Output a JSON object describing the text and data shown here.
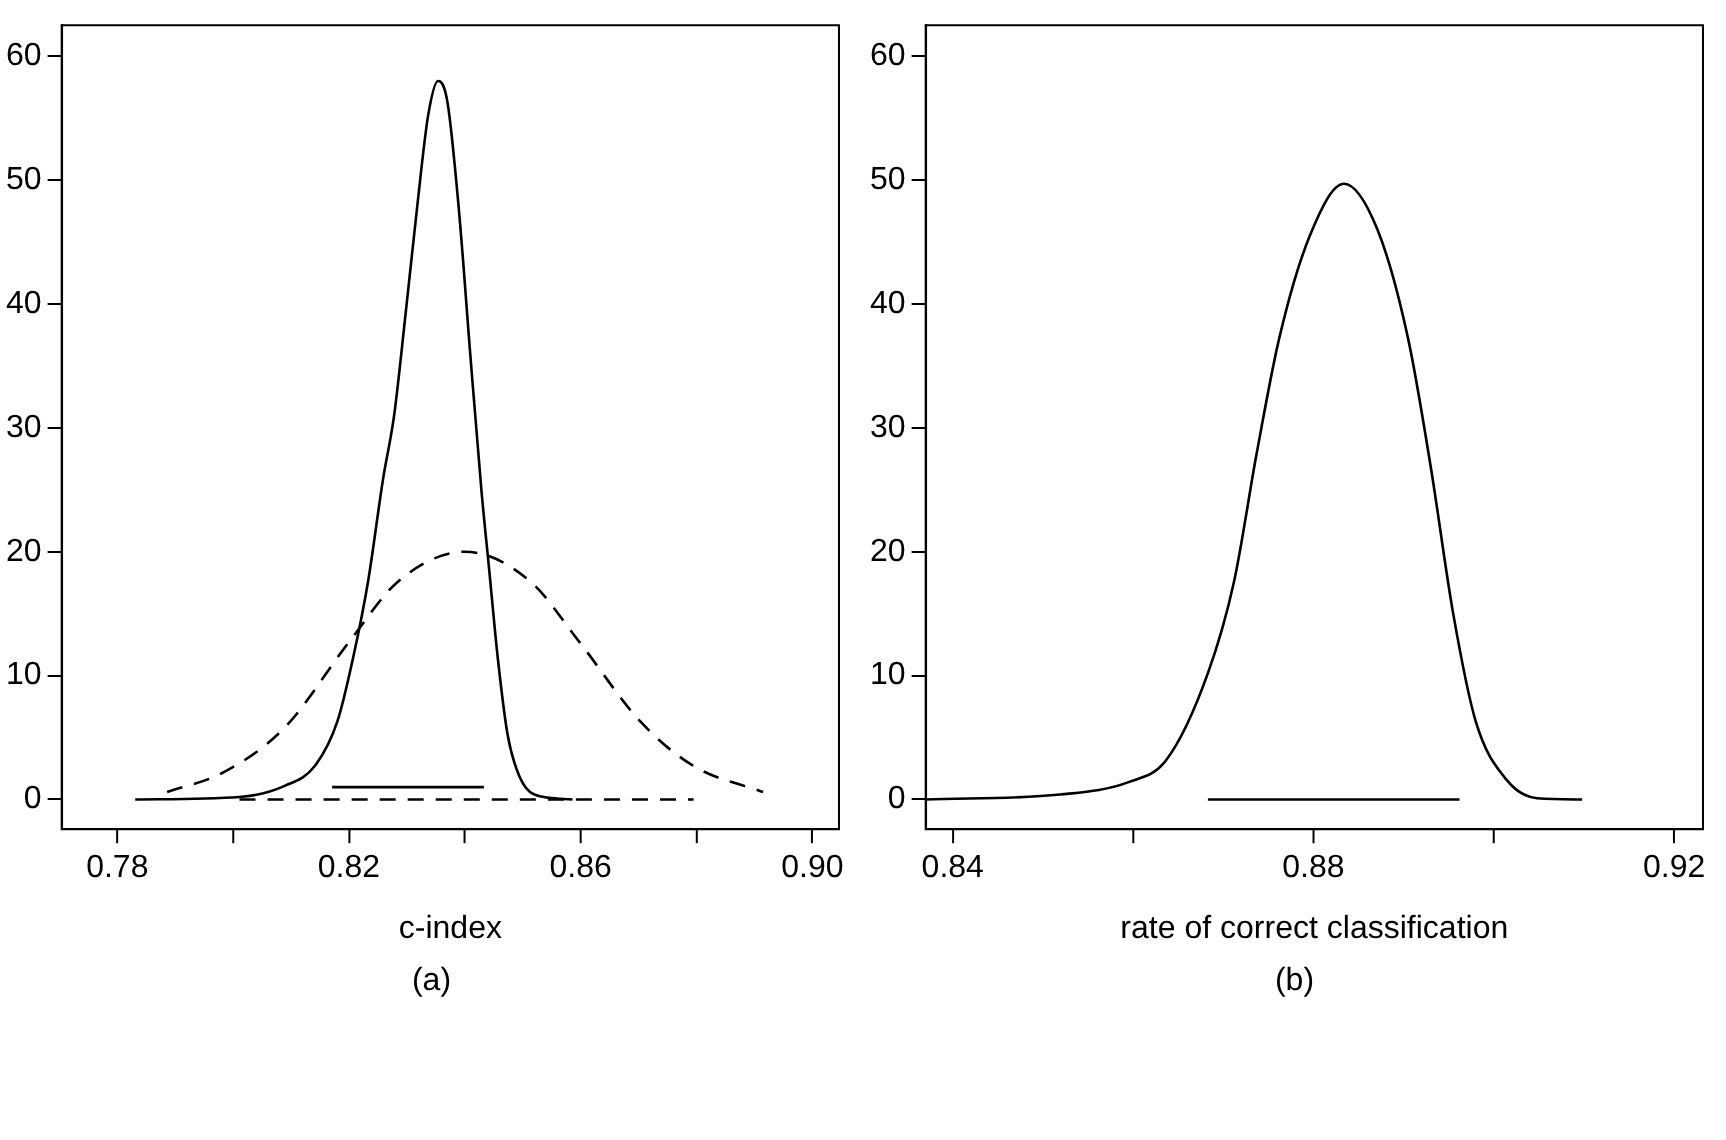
{
  "chart_data": [
    {
      "type": "line",
      "xlabel": "c-index",
      "annotations": [
        "(a)"
      ],
      "xlim": [
        0.7704,
        0.9046
      ],
      "xticks": [
        0.78,
        {
          "value": 0.8,
          "label": null
        },
        0.82,
        {
          "value": 0.84,
          "label": null
        },
        0.86,
        {
          "value": 0.88,
          "label": null
        },
        {
          "value": 0.9,
          "label": "0.90"
        }
      ],
      "ylim": [
        -2.4,
        62.5
      ],
      "yticks": [
        0,
        10,
        20,
        30,
        40,
        50,
        60
      ],
      "grid": false,
      "legend": false,
      "series": [
        {
          "color": "#000000",
          "line_style": "solid",
          "x": [
            0.7831,
            0.8011,
            0.8089,
            0.8141,
            0.818,
            0.8207,
            0.8233,
            0.8259,
            0.8278,
            0.8298,
            0.8317,
            0.8337,
            0.8354,
            0.837,
            0.839,
            0.8409,
            0.8429,
            0.8442,
            0.8457,
            0.8474,
            0.8494,
            0.852,
            0.8586
          ],
          "values": [
            0,
            0.2,
            1.1,
            2.7,
            6.3,
            11.4,
            17.6,
            25.9,
            31,
            39.3,
            47.5,
            55.3,
            58,
            56.3,
            47.5,
            36.2,
            24.8,
            18.6,
            11.4,
            5.2,
            1.9,
            0.4,
            0
          ]
        },
        {
          "color": "#000000",
          "line_style": "dashed",
          "x": [
            0.7886,
            0.7984,
            0.8089,
            0.82,
            0.8285,
            0.84,
            0.8513,
            0.8598,
            0.8703,
            0.8795,
            0.8915
          ],
          "values": [
            0.6,
            2.2,
            5.8,
            12.7,
            17.6,
            20,
            17.6,
            12.7,
            6.3,
            2.7,
            0.6
          ]
        },
        {
          "color": "#000000",
          "line_style": "solid",
          "x": [
            0.8171,
            0.8433
          ],
          "values": [
            1,
            1
          ]
        },
        {
          "color": "#000000",
          "line_style": "dashed",
          "x": [
            0.8011,
            0.8795
          ],
          "values": [
            0,
            0
          ]
        }
      ]
    },
    {
      "type": "line",
      "xlabel": "rate of correct classification",
      "annotations": [
        "(b)"
      ],
      "xlim": [
        0.837,
        0.9232
      ],
      "xticks": [
        0.84,
        {
          "value": 0.86,
          "label": null
        },
        0.88,
        {
          "value": 0.9,
          "label": null
        },
        0.92
      ],
      "ylim": [
        -2.4,
        62.5
      ],
      "yticks": [
        0,
        10,
        20,
        30,
        40,
        50,
        60
      ],
      "grid": false,
      "legend": false,
      "series": [
        {
          "color": "#000000",
          "line_style": "solid",
          "x": [
            0.837,
            0.8519,
            0.8595,
            0.8637,
            0.8683,
            0.8712,
            0.8737,
            0.8762,
            0.8796,
            0.8834,
            0.8871,
            0.8905,
            0.893,
            0.8955,
            0.898,
            0.9014,
            0.9048,
            0.9098
          ],
          "values": [
            0,
            0.4,
            1.4,
            3.2,
            10.2,
            17.6,
            27.9,
            37.2,
            45.5,
            49.7,
            46,
            37.2,
            26.9,
            15,
            6.3,
            1.6,
            0.1,
            0
          ]
        },
        {
          "color": "#000000",
          "line_style": "solid",
          "x": [
            0.8683,
            0.8962
          ],
          "values": [
            0,
            0
          ]
        }
      ]
    }
  ]
}
